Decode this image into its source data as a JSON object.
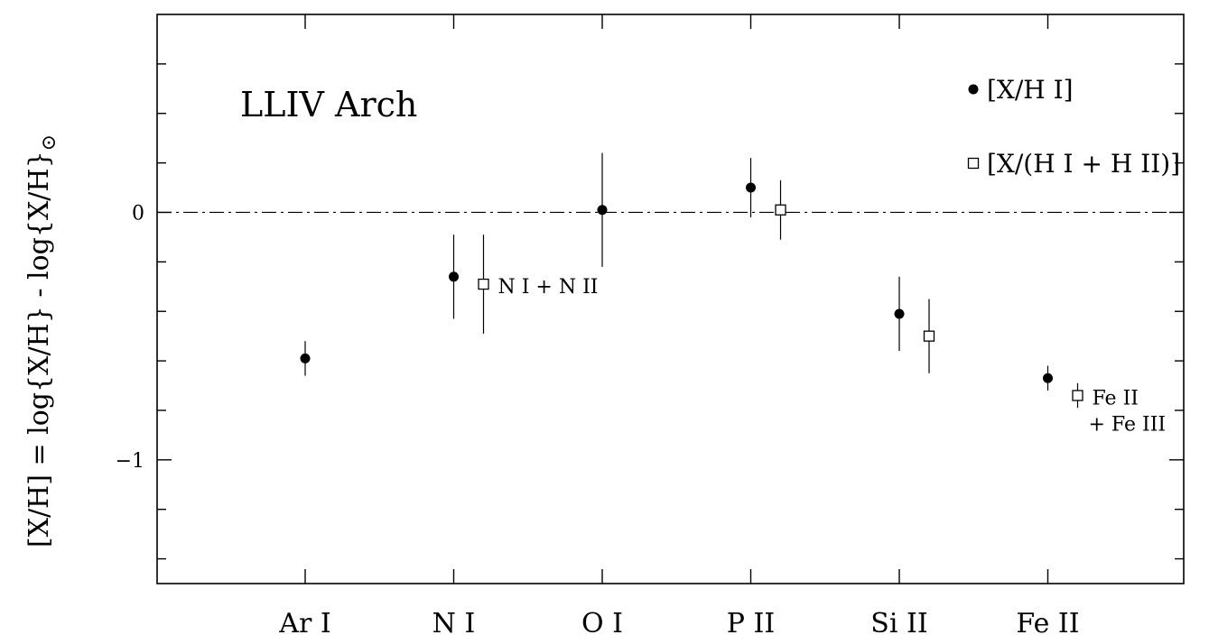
{
  "chart_data": {
    "type": "scatter",
    "title": "LLIV Arch",
    "ylabel": "[X/H] = log{X/H} - log{X/H}",
    "ylabel_subscript": "⊙",
    "ylim": [
      -1.5,
      0.8
    ],
    "categories": [
      "Ar I",
      "N I",
      "O I",
      "P II",
      "Si II",
      "Fe II"
    ],
    "yticks": [
      {
        "value": -1,
        "label": "−1"
      },
      {
        "value": 0,
        "label": "0"
      }
    ],
    "minor_tick_step": 0.2,
    "reference_line": {
      "y": 0,
      "style": "dash-dot"
    },
    "legend_position": "top-right",
    "series": [
      {
        "name": "[X/H I]",
        "marker": "filled-circle",
        "points": [
          {
            "category": "Ar I",
            "y": -0.59,
            "err_low": 0.07,
            "err_high": 0.07
          },
          {
            "category": "N I",
            "y": -0.26,
            "err_low": 0.17,
            "err_high": 0.17
          },
          {
            "category": "O I",
            "y": 0.01,
            "err_low": 0.23,
            "err_high": 0.23
          },
          {
            "category": "P II",
            "y": 0.1,
            "err_low": 0.12,
            "err_high": 0.12
          },
          {
            "category": "Si II",
            "y": -0.41,
            "err_low": 0.15,
            "err_high": 0.15
          },
          {
            "category": "Fe II",
            "y": -0.67,
            "err_low": 0.05,
            "err_high": 0.05
          }
        ]
      },
      {
        "name": "[X/(H I + H II)]",
        "marker": "open-square",
        "points": [
          {
            "category": "N I",
            "y": -0.29,
            "err_low": 0.2,
            "err_high": 0.2
          },
          {
            "category": "P II",
            "y": 0.01,
            "err_low": 0.12,
            "err_high": 0.12
          },
          {
            "category": "Si II",
            "y": -0.5,
            "err_low": 0.15,
            "err_high": 0.15
          },
          {
            "category": "Fe II",
            "y": -0.74,
            "err_low": 0.05,
            "err_high": 0.05
          }
        ]
      }
    ],
    "annotations": [
      {
        "category": "N I",
        "lines": [
          "N I + N II"
        ]
      },
      {
        "category": "Fe II",
        "lines": [
          "Fe II",
          "+ Fe III"
        ]
      }
    ]
  }
}
